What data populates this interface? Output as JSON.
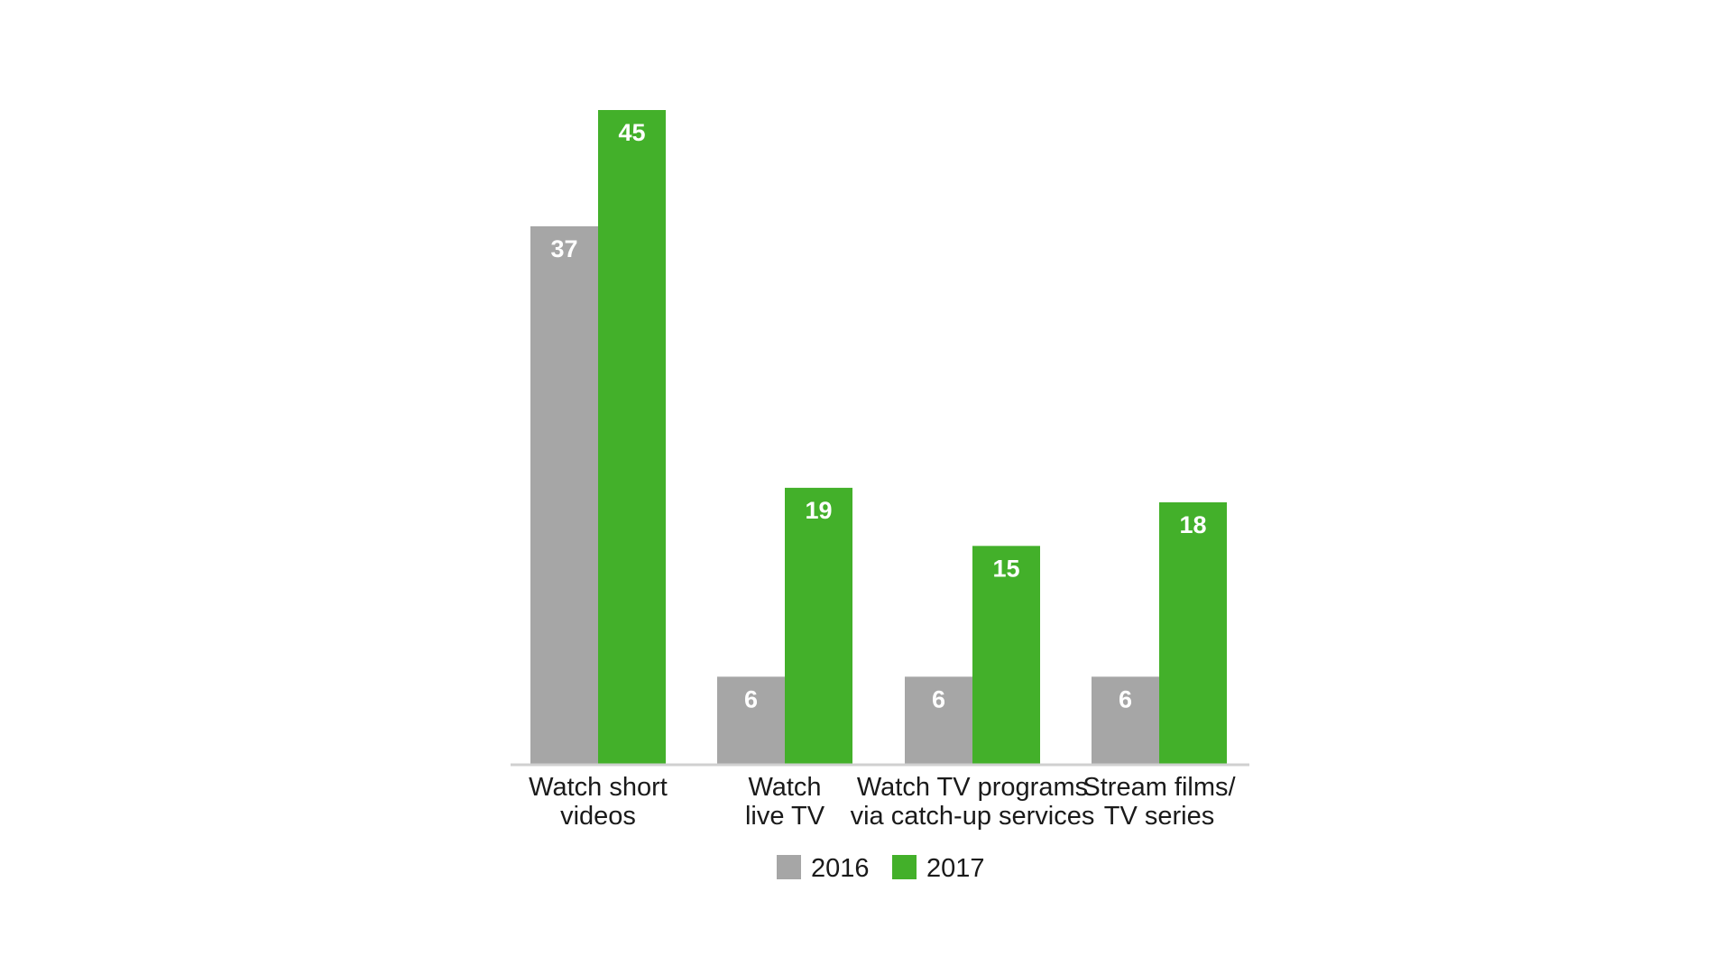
{
  "chart_data": {
    "type": "bar",
    "categories": [
      [
        "Watch short",
        "videos"
      ],
      [
        "Watch",
        "live TV"
      ],
      [
        "Watch TV programs",
        "via catch-up services"
      ],
      [
        "Stream films/",
        "TV series"
      ]
    ],
    "series": [
      {
        "name": "2016",
        "color": "#a6a6a6",
        "values": [
          37,
          6,
          6,
          6
        ]
      },
      {
        "name": "2017",
        "color": "#43b02a",
        "values": [
          45,
          19,
          15,
          18
        ]
      }
    ],
    "title": "",
    "xlabel": "",
    "ylabel": "",
    "ylim": [
      0,
      45
    ],
    "grid": false,
    "legend": "bottom-center",
    "axis_color": "#d0d0d0"
  }
}
